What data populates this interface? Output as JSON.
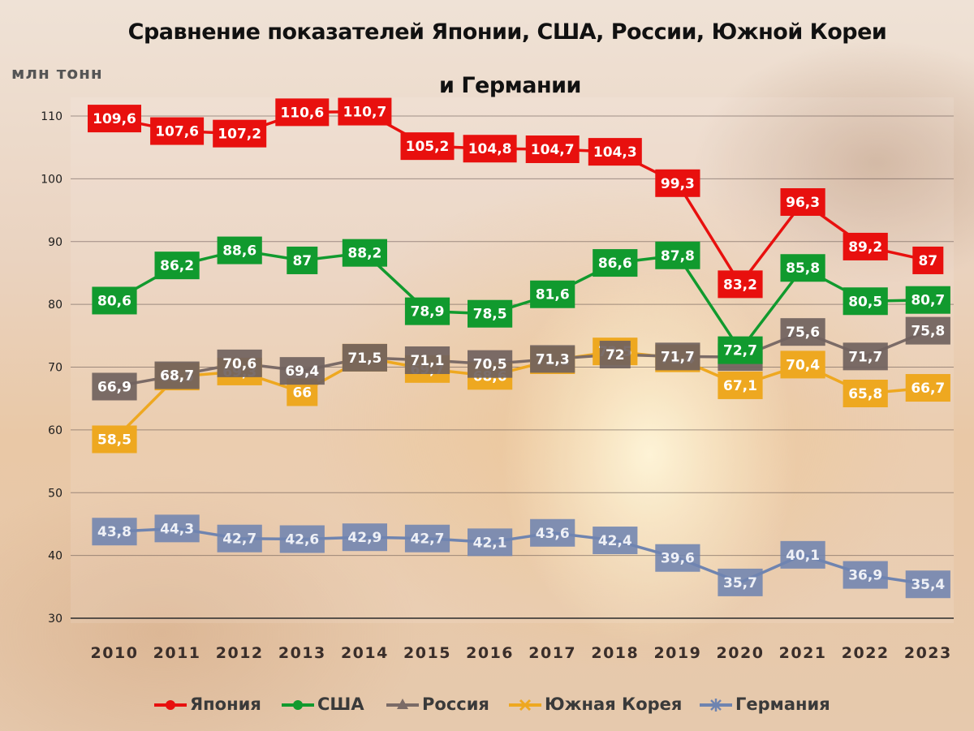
{
  "chart_data": {
    "type": "line",
    "title": "Сравнение показателей Японии, США, России, Южной Кореи",
    "title_line2": "и Германии",
    "ylabel": "млн тонн",
    "x": [
      "2010",
      "2011",
      "2012",
      "2013",
      "2014",
      "2015",
      "2016",
      "2017",
      "2018",
      "2019",
      "2020",
      "2021",
      "2022",
      "2023"
    ],
    "ylim": [
      30,
      110
    ],
    "yticks": [
      "30",
      "40",
      "50",
      "60",
      "70",
      "80",
      "90",
      "100",
      "110"
    ],
    "grid": true,
    "legend_position": "bottom",
    "series": [
      {
        "name": "Япония",
        "color": "#e8100e",
        "marker": "circle",
        "values": [
          109.6,
          107.6,
          107.2,
          110.6,
          110.7,
          105.2,
          104.8,
          104.7,
          104.3,
          99.3,
          83.2,
          96.3,
          89.2,
          87
        ],
        "labels": [
          "109,6",
          "107,6",
          "107,2",
          "110,6",
          "110,7",
          "105,2",
          "104,8",
          "104,7",
          "104,3",
          "99,3",
          "83,2",
          "96,3",
          "89,2",
          "87"
        ]
      },
      {
        "name": "США",
        "color": "#119a2e",
        "marker": "circle",
        "values": [
          80.6,
          86.2,
          88.6,
          87,
          88.2,
          78.9,
          78.5,
          81.6,
          86.6,
          87.8,
          72.7,
          85.8,
          80.5,
          80.7
        ],
        "labels": [
          "80,6",
          "86,2",
          "88,6",
          "87",
          "88,2",
          "78,9",
          "78,5",
          "81,6",
          "86,6",
          "87,8",
          "72,7",
          "85,8",
          "80,5",
          "80,7"
        ]
      },
      {
        "name": "Россия",
        "color": "#7b6b67",
        "marker": "triangle",
        "values": [
          66.9,
          68.7,
          70.6,
          69.4,
          71.5,
          71.1,
          70.5,
          71.3,
          72,
          71.7,
          71.6,
          75.6,
          71.7,
          75.8
        ],
        "labels": [
          "66,9",
          "68,7",
          "70,6",
          "69,4",
          "71,5",
          "71,1",
          "70,5",
          "71,3",
          "72",
          "71,7",
          "71,6",
          "75,6",
          "71,7",
          "75,8"
        ]
      },
      {
        "name": "Южная Корея",
        "color": "#eea820",
        "marker": "x",
        "values": [
          58.5,
          68.5,
          69.3,
          66,
          71.5,
          69.7,
          68.6,
          71.1,
          72.5,
          71.4,
          67.1,
          70.4,
          65.8,
          66.7
        ],
        "labels": [
          "58,5",
          "68,5",
          "69,3",
          "66",
          "71,5",
          "69,7",
          "68,6",
          "71,1",
          "72,5",
          "71,4",
          "67,1",
          "70,4",
          "65,8",
          "66,7"
        ]
      },
      {
        "name": "Германия",
        "color": "#6f84b0",
        "marker": "star",
        "values": [
          43.8,
          44.3,
          42.7,
          42.6,
          42.9,
          42.7,
          42.1,
          43.6,
          42.4,
          39.6,
          35.7,
          40.1,
          36.9,
          35.4
        ],
        "labels": [
          "43,8",
          "44,3",
          "42,7",
          "42,6",
          "42,9",
          "42,7",
          "42,1",
          "43,6",
          "42,4",
          "39,6",
          "35,7",
          "40,1",
          "36,9",
          "35,4"
        ]
      }
    ]
  },
  "legend_icons": {
    "Япония": "circle-marker-icon",
    "США": "circle-marker-icon",
    "Россия": "triangle-marker-icon",
    "Южная Корея": "x-marker-icon",
    "Германия": "star-marker-icon"
  }
}
